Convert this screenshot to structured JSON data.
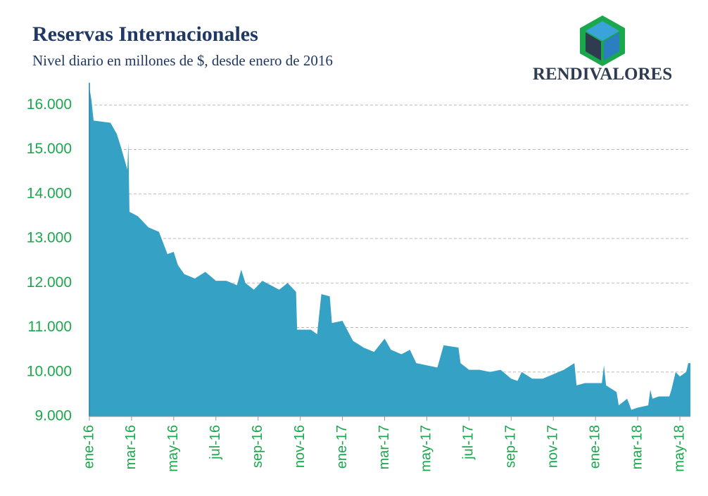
{
  "brand": "RENDIVALORES",
  "chart_data": {
    "type": "area",
    "title": "Reservas Internacionales",
    "subtitle": "Nivel diario en millones de $, desde enero de 2016",
    "color": "#35a1c4",
    "grid": true,
    "xlim": [
      0,
      28.5
    ],
    "ylim": [
      9000,
      16500
    ],
    "yticks": [
      {
        "value": 9000,
        "label": "9.000"
      },
      {
        "value": 10000,
        "label": "10.000"
      },
      {
        "value": 11000,
        "label": "11.000"
      },
      {
        "value": 12000,
        "label": "12.000"
      },
      {
        "value": 13000,
        "label": "13.000"
      },
      {
        "value": 14000,
        "label": "14.000"
      },
      {
        "value": 15000,
        "label": "15.000"
      },
      {
        "value": 16000,
        "label": "16.000"
      }
    ],
    "xticks": [
      {
        "value": 0,
        "label": "ene-16"
      },
      {
        "value": 2,
        "label": "mar-16"
      },
      {
        "value": 4,
        "label": "may-16"
      },
      {
        "value": 6,
        "label": "jul-16"
      },
      {
        "value": 8,
        "label": "sep-16"
      },
      {
        "value": 10,
        "label": "nov-16"
      },
      {
        "value": 12,
        "label": "ene-17"
      },
      {
        "value": 14,
        "label": "mar-17"
      },
      {
        "value": 16,
        "label": "may-17"
      },
      {
        "value": 18,
        "label": "jul-17"
      },
      {
        "value": 20,
        "label": "sep-17"
      },
      {
        "value": 22,
        "label": "nov-17"
      },
      {
        "value": 24,
        "label": "ene-18"
      },
      {
        "value": 26,
        "label": "mar-18"
      },
      {
        "value": 28,
        "label": "may-18"
      }
    ],
    "x": [
      0,
      0.1,
      0.2,
      1.0,
      1.3,
      1.5,
      1.8,
      1.85,
      1.9,
      2.3,
      2.5,
      2.8,
      3.3,
      3.5,
      3.7,
      4.0,
      4.2,
      4.5,
      5.0,
      5.5,
      6.0,
      6.5,
      7.0,
      7.2,
      7.4,
      7.8,
      8.2,
      8.6,
      9.0,
      9.4,
      9.8,
      9.85,
      10.5,
      10.8,
      11.0,
      11.4,
      11.5,
      12.0,
      12.5,
      13.0,
      13.5,
      14.0,
      14.3,
      14.8,
      15.2,
      15.5,
      16.0,
      16.5,
      16.8,
      17.5,
      17.6,
      18.0,
      18.5,
      19.0,
      19.5,
      20.0,
      20.3,
      20.5,
      21.0,
      21.5,
      22.0,
      22.5,
      23.0,
      23.1,
      23.5,
      24.0,
      24.3,
      24.4,
      24.5,
      25.0,
      25.1,
      25.5,
      25.7,
      26.0,
      26.5,
      26.6,
      26.7,
      27.0,
      27.5,
      27.6,
      27.8,
      28.0,
      28.3,
      28.4,
      28.5
    ],
    "values": [
      16400,
      16100,
      15650,
      15600,
      15350,
      15050,
      14550,
      15150,
      13600,
      13500,
      13400,
      13250,
      13150,
      12900,
      12650,
      12700,
      12400,
      12200,
      12100,
      12250,
      12050,
      12050,
      11950,
      12300,
      12000,
      11850,
      12050,
      11950,
      11850,
      12000,
      11800,
      10950,
      10950,
      10850,
      11750,
      11700,
      11100,
      11150,
      10700,
      10550,
      10450,
      10750,
      10500,
      10400,
      10500,
      10200,
      10150,
      10100,
      10600,
      10550,
      10200,
      10050,
      10050,
      10000,
      10050,
      9850,
      9800,
      10000,
      9850,
      9850,
      9950,
      10050,
      10200,
      9700,
      9750,
      9750,
      9750,
      10150,
      9700,
      9550,
      9250,
      9400,
      9150,
      9200,
      9250,
      9600,
      9400,
      9450,
      9450,
      9600,
      10000,
      9900,
      10000,
      10200,
      10200
    ]
  }
}
